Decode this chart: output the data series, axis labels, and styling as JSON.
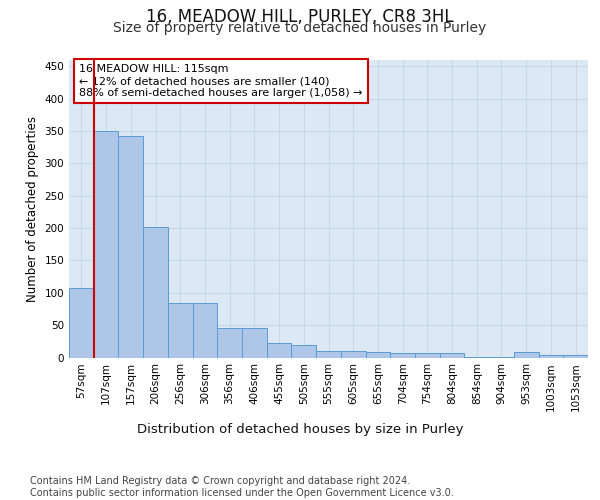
{
  "title": "16, MEADOW HILL, PURLEY, CR8 3HL",
  "subtitle": "Size of property relative to detached houses in Purley",
  "xlabel": "Distribution of detached houses by size in Purley",
  "ylabel": "Number of detached properties",
  "bar_labels": [
    "57sqm",
    "107sqm",
    "157sqm",
    "206sqm",
    "256sqm",
    "306sqm",
    "356sqm",
    "406sqm",
    "455sqm",
    "505sqm",
    "555sqm",
    "605sqm",
    "655sqm",
    "704sqm",
    "754sqm",
    "804sqm",
    "854sqm",
    "904sqm",
    "953sqm",
    "1003sqm",
    "1053sqm"
  ],
  "bar_values": [
    108,
    350,
    343,
    202,
    84,
    84,
    46,
    46,
    22,
    20,
    10,
    10,
    8,
    7,
    7,
    7,
    1,
    1,
    8,
    4,
    4
  ],
  "bar_color": "#aec6e8",
  "bar_edge_color": "#5b9bd5",
  "vline_x": 1,
  "vline_color": "#cc0000",
  "annotation_text": "16 MEADOW HILL: 115sqm\n← 12% of detached houses are smaller (140)\n88% of semi-detached houses are larger (1,058) →",
  "annotation_box_color": "#ffffff",
  "annotation_box_edge": "#cc0000",
  "grid_color": "#c8d8e8",
  "plot_bg_color": "#dce9f5",
  "ylim": [
    0,
    460
  ],
  "yticks": [
    0,
    50,
    100,
    150,
    200,
    250,
    300,
    350,
    400,
    450
  ],
  "footer_text": "Contains HM Land Registry data © Crown copyright and database right 2024.\nContains public sector information licensed under the Open Government Licence v3.0.",
  "title_fontsize": 12,
  "subtitle_fontsize": 10,
  "xlabel_fontsize": 9.5,
  "ylabel_fontsize": 8.5,
  "tick_fontsize": 7.5,
  "annotation_fontsize": 8,
  "footer_fontsize": 7
}
